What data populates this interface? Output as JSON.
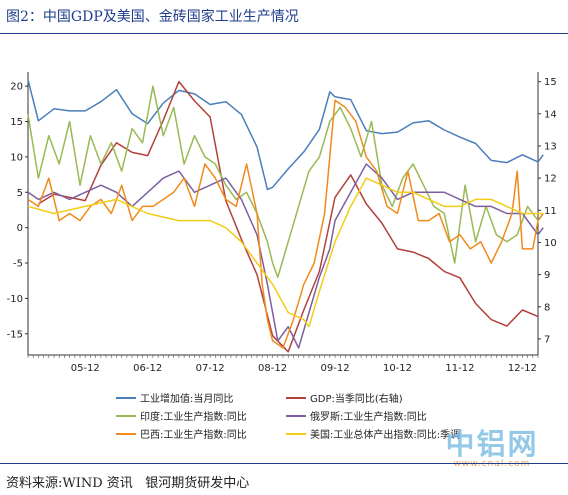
{
  "header": {
    "title": "图2：中国GDP及美国、金砖国家工业生产情况"
  },
  "footer": {
    "source": "资料来源:WIND 资讯   银河期货研发中心"
  },
  "watermark": {
    "text": "中铝网",
    "url": "www.cnal.com"
  },
  "colors": {
    "china_ip": "#4a7ebb",
    "china_gdp": "#b3413b",
    "india": "#98b954",
    "russia": "#7d5fa0",
    "brazil": "#f08a1c",
    "us": "#f2cc17"
  },
  "chart_data": {
    "type": "line",
    "title": "",
    "x_ticks": [
      "05-12",
      "06-12",
      "07-12",
      "08-12",
      "09-12",
      "10-12",
      "11-12",
      "12-12"
    ],
    "x_range": [
      "2005-01",
      "2013-03"
    ],
    "left_axis": {
      "ylim": [
        -18,
        22
      ],
      "ticks": [
        20,
        15,
        10,
        5,
        0,
        -5,
        -10,
        -15
      ]
    },
    "right_axis": {
      "ylim": [
        6.5,
        15.3
      ],
      "ticks": [
        15,
        14,
        13,
        12,
        11,
        10,
        9,
        8,
        7
      ]
    },
    "legend_position": "bottom",
    "series": [
      {
        "name": "工业增加值:当月同比",
        "axis": "left",
        "color": "#4a7ebb",
        "points": [
          [
            "2005-01",
            20.9
          ],
          [
            "2005-03",
            15.1
          ],
          [
            "2005-06",
            16.8
          ],
          [
            "2005-09",
            16.5
          ],
          [
            "2005-12",
            16.5
          ],
          [
            "2006-03",
            17.8
          ],
          [
            "2006-06",
            19.5
          ],
          [
            "2006-09",
            16.1
          ],
          [
            "2006-12",
            14.7
          ],
          [
            "2007-03",
            17.6
          ],
          [
            "2007-06",
            19.4
          ],
          [
            "2007-09",
            18.9
          ],
          [
            "2007-12",
            17.4
          ],
          [
            "2008-03",
            17.8
          ],
          [
            "2008-06",
            16.0
          ],
          [
            "2008-09",
            11.4
          ],
          [
            "2008-11",
            5.4
          ],
          [
            "2008-12",
            5.7
          ],
          [
            "2009-03",
            8.3
          ],
          [
            "2009-06",
            10.7
          ],
          [
            "2009-09",
            13.9
          ],
          [
            "2009-11",
            19.2
          ],
          [
            "2009-12",
            18.5
          ],
          [
            "2010-03",
            18.1
          ],
          [
            "2010-06",
            13.7
          ],
          [
            "2010-09",
            13.3
          ],
          [
            "2010-12",
            13.5
          ],
          [
            "2011-03",
            14.8
          ],
          [
            "2011-06",
            15.1
          ],
          [
            "2011-09",
            13.8
          ],
          [
            "2011-12",
            12.8
          ],
          [
            "2012-03",
            11.9
          ],
          [
            "2012-06",
            9.5
          ],
          [
            "2012-09",
            9.2
          ],
          [
            "2012-12",
            10.3
          ],
          [
            "2013-03",
            9.3
          ],
          [
            "2013-04",
            10.3
          ]
        ]
      },
      {
        "name": "GDP:当季同比(右轴)",
        "axis": "right",
        "color": "#b3413b",
        "points": [
          [
            "2005-03",
            11.2
          ],
          [
            "2005-06",
            11.5
          ],
          [
            "2005-09",
            11.4
          ],
          [
            "2005-12",
            11.3
          ],
          [
            "2006-03",
            12.4
          ],
          [
            "2006-06",
            13.1
          ],
          [
            "2006-09",
            12.8
          ],
          [
            "2006-12",
            12.7
          ],
          [
            "2007-03",
            13.8
          ],
          [
            "2007-06",
            15.0
          ],
          [
            "2007-09",
            14.4
          ],
          [
            "2007-12",
            13.9
          ],
          [
            "2008-03",
            11.3
          ],
          [
            "2008-06",
            10.1
          ],
          [
            "2008-09",
            9.0
          ],
          [
            "2008-12",
            7.1
          ],
          [
            "2009-03",
            6.6
          ],
          [
            "2009-06",
            7.9
          ],
          [
            "2009-09",
            9.1
          ],
          [
            "2009-12",
            11.4
          ],
          [
            "2010-03",
            12.1
          ],
          [
            "2010-06",
            11.2
          ],
          [
            "2010-09",
            10.6
          ],
          [
            "2010-12",
            9.8
          ],
          [
            "2011-03",
            9.7
          ],
          [
            "2011-06",
            9.5
          ],
          [
            "2011-09",
            9.1
          ],
          [
            "2011-12",
            8.9
          ],
          [
            "2012-03",
            8.1
          ],
          [
            "2012-06",
            7.6
          ],
          [
            "2012-09",
            7.4
          ],
          [
            "2012-12",
            7.9
          ],
          [
            "2013-03",
            7.7
          ]
        ]
      },
      {
        "name": "印度:工业生产指数:同比",
        "axis": "left",
        "color": "#98b954",
        "points": [
          [
            "2005-01",
            16
          ],
          [
            "2005-03",
            7
          ],
          [
            "2005-05",
            13
          ],
          [
            "2005-07",
            9
          ],
          [
            "2005-09",
            15
          ],
          [
            "2005-11",
            6
          ],
          [
            "2006-01",
            13
          ],
          [
            "2006-03",
            9
          ],
          [
            "2006-05",
            12
          ],
          [
            "2006-07",
            8
          ],
          [
            "2006-09",
            14
          ],
          [
            "2006-11",
            12
          ],
          [
            "2007-01",
            20
          ],
          [
            "2007-03",
            13
          ],
          [
            "2007-05",
            17
          ],
          [
            "2007-07",
            9
          ],
          [
            "2007-09",
            13
          ],
          [
            "2007-11",
            10
          ],
          [
            "2008-01",
            9
          ],
          [
            "2008-03",
            6
          ],
          [
            "2008-05",
            4
          ],
          [
            "2008-07",
            5
          ],
          [
            "2008-09",
            2
          ],
          [
            "2008-11",
            -2
          ],
          [
            "2008-12",
            -5
          ],
          [
            "2009-01",
            -7
          ],
          [
            "2009-03",
            -2
          ],
          [
            "2009-05",
            3
          ],
          [
            "2009-07",
            8
          ],
          [
            "2009-09",
            10
          ],
          [
            "2009-11",
            15
          ],
          [
            "2010-01",
            17
          ],
          [
            "2010-03",
            14
          ],
          [
            "2010-05",
            10
          ],
          [
            "2010-07",
            15
          ],
          [
            "2010-09",
            6
          ],
          [
            "2010-11",
            3
          ],
          [
            "2011-01",
            7
          ],
          [
            "2011-03",
            9
          ],
          [
            "2011-05",
            6
          ],
          [
            "2011-07",
            3
          ],
          [
            "2011-09",
            2
          ],
          [
            "2011-11",
            -5
          ],
          [
            "2012-01",
            6
          ],
          [
            "2012-03",
            -2
          ],
          [
            "2012-05",
            3
          ],
          [
            "2012-07",
            -1
          ],
          [
            "2012-09",
            -2
          ],
          [
            "2012-11",
            -1
          ],
          [
            "2013-01",
            3
          ],
          [
            "2013-03",
            1
          ],
          [
            "2013-04",
            2
          ]
        ]
      },
      {
        "name": "俄罗斯:工业生产指数:同比",
        "axis": "left",
        "color": "#7d5fa0",
        "points": [
          [
            "2005-01",
            5
          ],
          [
            "2005-03",
            4
          ],
          [
            "2005-06",
            5
          ],
          [
            "2005-09",
            4
          ],
          [
            "2005-12",
            5
          ],
          [
            "2006-03",
            6
          ],
          [
            "2006-06",
            5
          ],
          [
            "2006-09",
            3
          ],
          [
            "2006-12",
            5
          ],
          [
            "2007-03",
            7
          ],
          [
            "2007-06",
            8
          ],
          [
            "2007-09",
            5
          ],
          [
            "2007-12",
            6
          ],
          [
            "2008-03",
            7
          ],
          [
            "2008-06",
            4
          ],
          [
            "2008-09",
            -1
          ],
          [
            "2008-11",
            -8
          ],
          [
            "2009-01",
            -16
          ],
          [
            "2009-03",
            -14
          ],
          [
            "2009-05",
            -17
          ],
          [
            "2009-07",
            -12
          ],
          [
            "2009-09",
            -7
          ],
          [
            "2009-11",
            -3
          ],
          [
            "2009-12",
            1
          ],
          [
            "2010-03",
            5
          ],
          [
            "2010-06",
            9
          ],
          [
            "2010-09",
            7
          ],
          [
            "2010-12",
            4
          ],
          [
            "2011-03",
            5
          ],
          [
            "2011-06",
            5
          ],
          [
            "2011-09",
            5
          ],
          [
            "2011-12",
            4
          ],
          [
            "2012-03",
            3
          ],
          [
            "2012-06",
            3
          ],
          [
            "2012-09",
            2
          ],
          [
            "2012-12",
            2
          ],
          [
            "2013-03",
            -1
          ],
          [
            "2013-04",
            0
          ]
        ]
      },
      {
        "name": "巴西:工业生产指数:同比",
        "axis": "left",
        "color": "#f08a1c",
        "points": [
          [
            "2005-01",
            4
          ],
          [
            "2005-03",
            3
          ],
          [
            "2005-05",
            7
          ],
          [
            "2005-07",
            1
          ],
          [
            "2005-09",
            2
          ],
          [
            "2005-11",
            1
          ],
          [
            "2006-01",
            3
          ],
          [
            "2006-03",
            4
          ],
          [
            "2006-05",
            2
          ],
          [
            "2006-07",
            6
          ],
          [
            "2006-09",
            1
          ],
          [
            "2006-11",
            3
          ],
          [
            "2007-01",
            3
          ],
          [
            "2007-03",
            4
          ],
          [
            "2007-05",
            5
          ],
          [
            "2007-07",
            7
          ],
          [
            "2007-09",
            3
          ],
          [
            "2007-11",
            9
          ],
          [
            "2008-01",
            7
          ],
          [
            "2008-03",
            4
          ],
          [
            "2008-05",
            3
          ],
          [
            "2008-07",
            9
          ],
          [
            "2008-09",
            2
          ],
          [
            "2008-10",
            -8
          ],
          [
            "2008-11",
            -13
          ],
          [
            "2008-12",
            -16
          ],
          [
            "2009-02",
            -17
          ],
          [
            "2009-04",
            -13
          ],
          [
            "2009-06",
            -8
          ],
          [
            "2009-08",
            -5
          ],
          [
            "2009-10",
            2
          ],
          [
            "2009-12",
            18
          ],
          [
            "2010-02",
            17
          ],
          [
            "2010-04",
            15
          ],
          [
            "2010-06",
            10
          ],
          [
            "2010-08",
            8
          ],
          [
            "2010-10",
            3
          ],
          [
            "2010-12",
            2
          ],
          [
            "2011-02",
            8
          ],
          [
            "2011-04",
            1
          ],
          [
            "2011-06",
            1
          ],
          [
            "2011-08",
            2
          ],
          [
            "2011-10",
            -2
          ],
          [
            "2011-12",
            -1
          ],
          [
            "2012-02",
            -3
          ],
          [
            "2012-04",
            -2
          ],
          [
            "2012-06",
            -5
          ],
          [
            "2012-08",
            -2
          ],
          [
            "2012-10",
            2
          ],
          [
            "2012-11",
            8
          ],
          [
            "2012-12",
            -3
          ],
          [
            "2013-02",
            -3
          ],
          [
            "2013-03",
            1
          ],
          [
            "2013-04",
            2
          ]
        ]
      },
      {
        "name": "美国:工业总体产出指数:同比:季调",
        "axis": "left",
        "color": "#f2cc17",
        "points": [
          [
            "2005-01",
            3
          ],
          [
            "2005-06",
            2
          ],
          [
            "2005-12",
            3
          ],
          [
            "2006-06",
            4
          ],
          [
            "2006-12",
            2
          ],
          [
            "2007-06",
            1
          ],
          [
            "2007-12",
            1
          ],
          [
            "2008-03",
            0
          ],
          [
            "2008-06",
            -2
          ],
          [
            "2008-09",
            -5
          ],
          [
            "2008-12",
            -8
          ],
          [
            "2009-03",
            -12
          ],
          [
            "2009-06",
            -13
          ],
          [
            "2009-07",
            -14
          ],
          [
            "2009-09",
            -9
          ],
          [
            "2009-12",
            -2
          ],
          [
            "2010-03",
            3
          ],
          [
            "2010-06",
            7
          ],
          [
            "2010-09",
            6
          ],
          [
            "2010-12",
            5
          ],
          [
            "2011-03",
            5
          ],
          [
            "2011-06",
            4
          ],
          [
            "2011-09",
            3
          ],
          [
            "2011-12",
            3
          ],
          [
            "2012-03",
            4
          ],
          [
            "2012-06",
            4
          ],
          [
            "2012-09",
            3
          ],
          [
            "2012-12",
            2
          ],
          [
            "2013-03",
            2
          ],
          [
            "2013-04",
            2
          ]
        ]
      }
    ]
  }
}
